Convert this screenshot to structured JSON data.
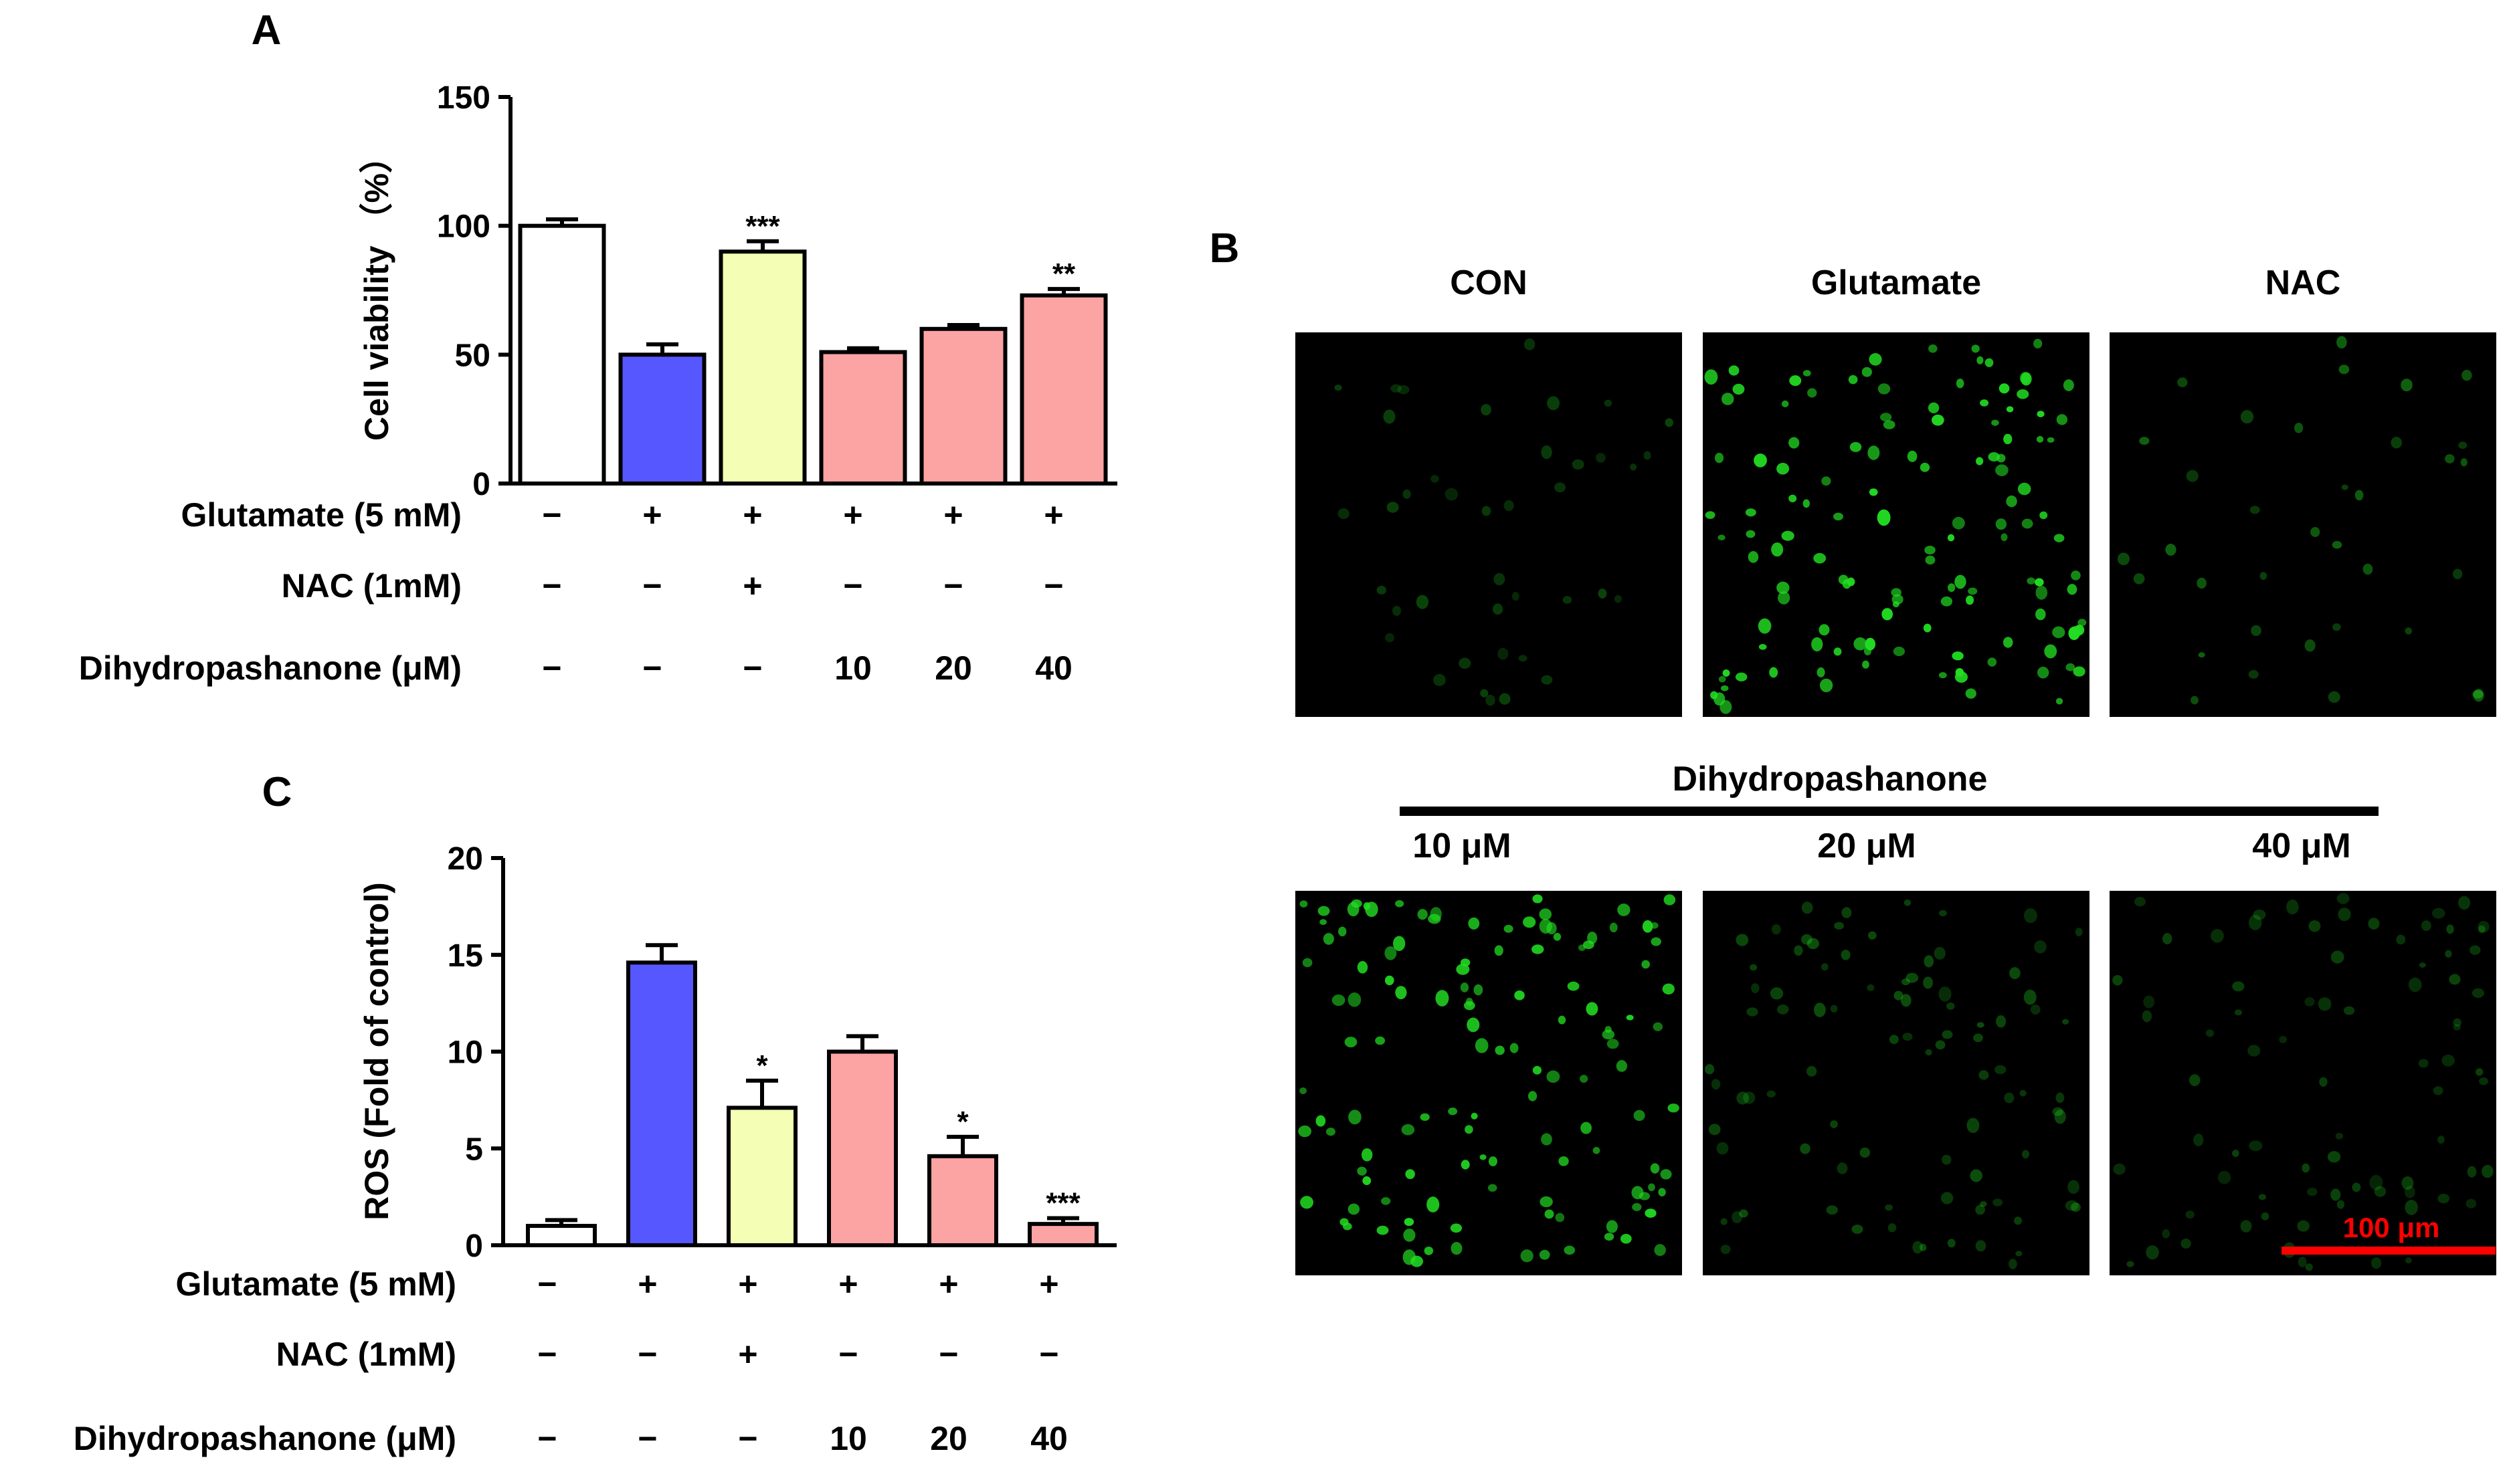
{
  "colors": {
    "bar_white": "#ffffff",
    "bar_blue": "#5757ff",
    "bar_yellow": "#f4ffb5",
    "bar_pink": "#fca3a3",
    "cell_green": "#22dd22",
    "scale_red": "#ff0000",
    "black": "#000000"
  },
  "chart_data": [
    {
      "panel": "A",
      "type": "bar",
      "ylabel": "Cell viability （%）",
      "ylim": [
        0,
        150
      ],
      "yticks": [
        "0",
        "50",
        "100",
        "150"
      ],
      "categories": [
        "1",
        "2",
        "3",
        "4",
        "5",
        "6"
      ],
      "values": [
        100,
        50,
        90,
        51,
        60,
        73
      ],
      "errors": [
        2.5,
        4,
        4,
        1.5,
        1.5,
        2.5
      ],
      "bar_colors": [
        "white",
        "blue",
        "yellow",
        "pink",
        "pink",
        "pink"
      ],
      "significance": [
        "",
        "",
        "***",
        "",
        "",
        "**"
      ],
      "conditions": [
        {
          "label": "Glutamate (5 mM)",
          "values": [
            "−",
            "+",
            "+",
            "+",
            "+",
            "+"
          ]
        },
        {
          "label": "NAC  (1mM)",
          "values": [
            "−",
            "−",
            "+",
            "−",
            "−",
            "−"
          ]
        },
        {
          "label": "Dihydropashanone (μM)",
          "values": [
            "−",
            "−",
            "−",
            "10",
            "20",
            "40"
          ]
        }
      ]
    },
    {
      "panel": "C",
      "type": "bar",
      "ylabel": "ROS (Fold of control)",
      "ylim": [
        0,
        20
      ],
      "yticks": [
        "0",
        "5",
        "10",
        "15",
        "20"
      ],
      "categories": [
        "1",
        "2",
        "3",
        "4",
        "5",
        "6"
      ],
      "values": [
        1,
        14.6,
        7.1,
        10,
        4.6,
        1.1
      ],
      "errors": [
        0.3,
        0.9,
        1.4,
        0.8,
        1.0,
        0.3
      ],
      "bar_colors": [
        "white",
        "blue",
        "yellow",
        "pink",
        "pink",
        "pink"
      ],
      "significance": [
        "",
        "",
        "*",
        "",
        "*",
        "***"
      ],
      "conditions": [
        {
          "label": "Glutamate (5 mM)",
          "values": [
            "−",
            "+",
            "+",
            "+",
            "+",
            "+"
          ]
        },
        {
          "label": "NAC  (1mM)",
          "values": [
            "−",
            "−",
            "+",
            "−",
            "−",
            "−"
          ]
        },
        {
          "label": "Dihydropashanone (μM)",
          "values": [
            "−",
            "−",
            "−",
            "10",
            "20",
            "40"
          ]
        }
      ]
    }
  ],
  "micrographs": {
    "panel": "B",
    "top_labels": [
      "CON",
      "Glutamate",
      "NAC"
    ],
    "treatment_label": "Dihydropashanone",
    "bottom_labels": [
      "10 μM",
      "20 μM",
      "40 μM"
    ],
    "scale_bar": "100 μm",
    "cell_density": [
      {
        "name": "CON",
        "count": 40,
        "brightness": 0.3
      },
      {
        "name": "Glutamate",
        "count": 130,
        "brightness": 1.0
      },
      {
        "name": "NAC",
        "count": 35,
        "brightness": 0.45
      },
      {
        "name": "10 μM",
        "count": 125,
        "brightness": 0.95
      },
      {
        "name": "20 μM",
        "count": 90,
        "brightness": 0.35
      },
      {
        "name": "40 μM",
        "count": 80,
        "brightness": 0.3
      }
    ]
  }
}
